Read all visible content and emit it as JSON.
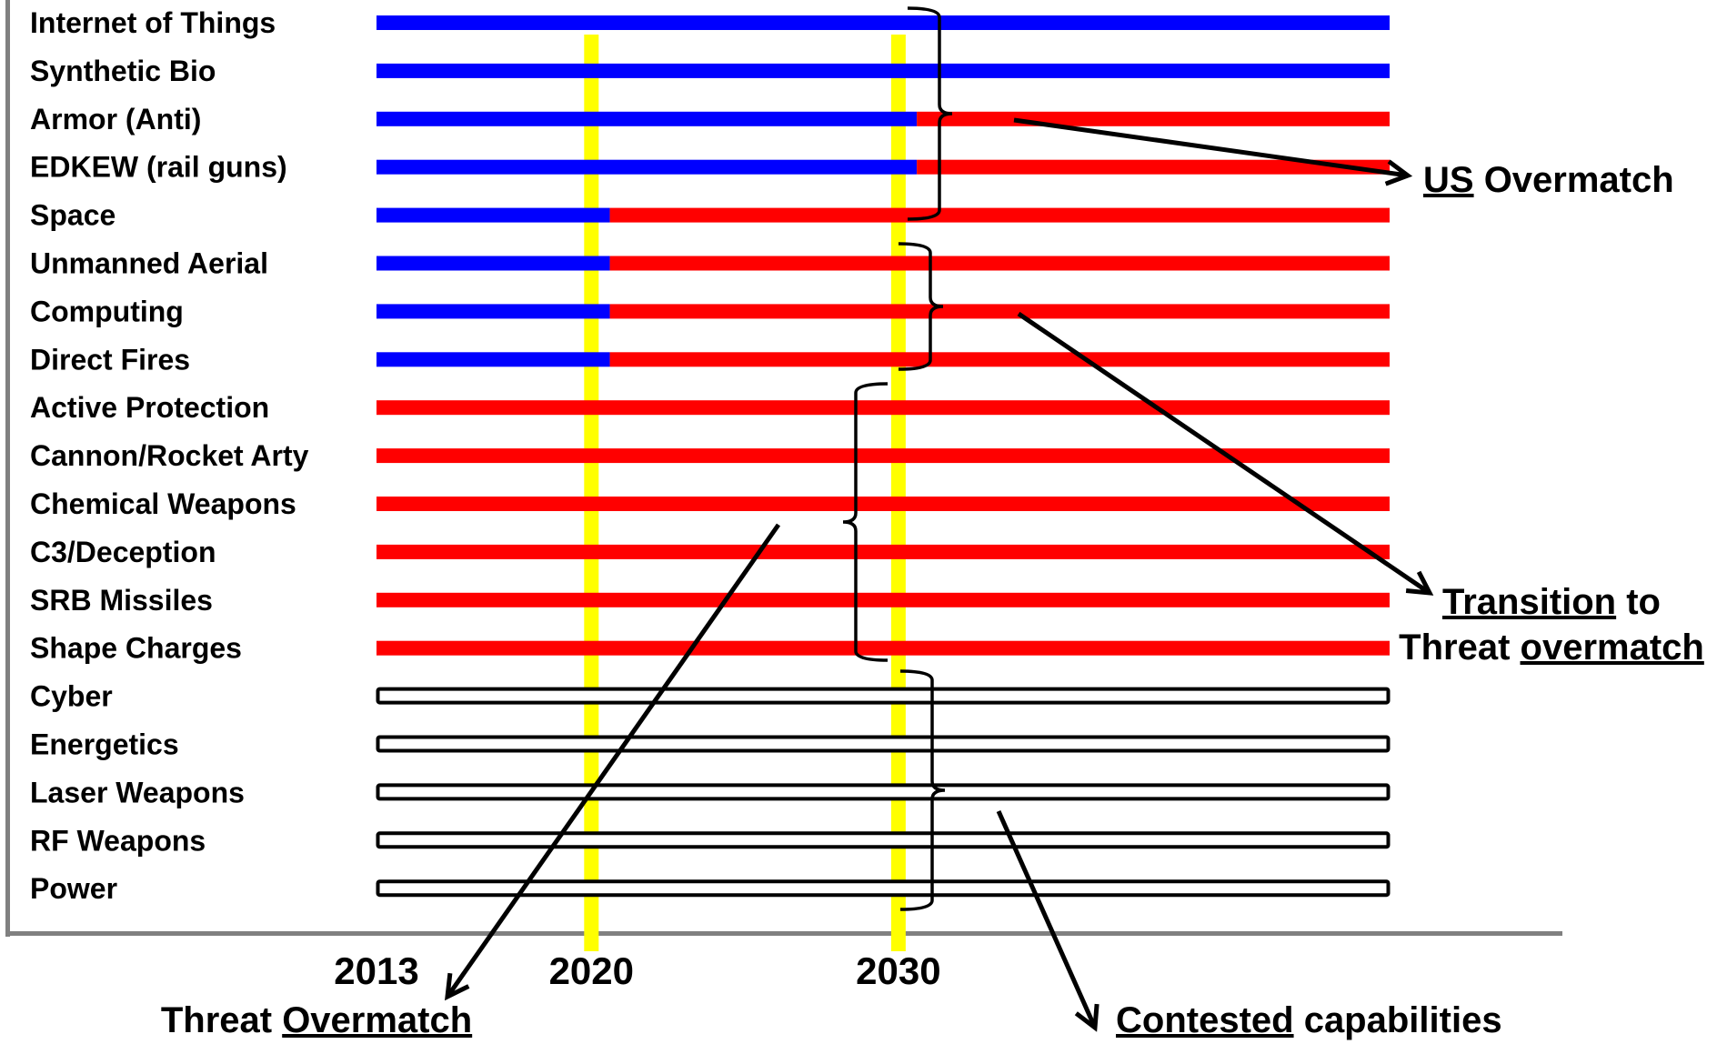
{
  "chart_data": {
    "type": "bar",
    "categories": [
      "Internet of Things",
      "Synthetic Bio",
      "Armor (Anti)",
      "EDKEW (rail guns)",
      "Space",
      "Unmanned Aerial",
      "Computing",
      "Direct Fires",
      "Active Protection",
      "Cannon/Rocket Arty",
      "Chemical Weapons",
      "C3/Deception",
      "SRB Missiles",
      "Shape Charges",
      "Cyber",
      "Energetics",
      "Laser Weapons",
      "RF Weapons",
      "Power"
    ],
    "xlim": [
      2013,
      2046
    ],
    "xticks": [
      "2013",
      "2020",
      "2030"
    ],
    "markers": [
      2020,
      2030
    ],
    "segments": [
      [
        {
          "start": 2013,
          "end": 2046,
          "status": "us"
        }
      ],
      [
        {
          "start": 2013,
          "end": 2046,
          "status": "us"
        }
      ],
      [
        {
          "start": 2013,
          "end": 2030.6,
          "status": "us"
        },
        {
          "start": 2030.6,
          "end": 2046,
          "status": "threat"
        }
      ],
      [
        {
          "start": 2013,
          "end": 2030.6,
          "status": "us"
        },
        {
          "start": 2030.6,
          "end": 2046,
          "status": "threat"
        }
      ],
      [
        {
          "start": 2013,
          "end": 2020.6,
          "status": "us"
        },
        {
          "start": 2020.6,
          "end": 2046,
          "status": "threat"
        }
      ],
      [
        {
          "start": 2013,
          "end": 2020.6,
          "status": "us"
        },
        {
          "start": 2020.6,
          "end": 2046,
          "status": "threat"
        }
      ],
      [
        {
          "start": 2013,
          "end": 2020.6,
          "status": "us"
        },
        {
          "start": 2020.6,
          "end": 2046,
          "status": "threat"
        }
      ],
      [
        {
          "start": 2013,
          "end": 2020.6,
          "status": "us"
        },
        {
          "start": 2020.6,
          "end": 2046,
          "status": "threat"
        }
      ],
      [
        {
          "start": 2013,
          "end": 2046,
          "status": "threat"
        }
      ],
      [
        {
          "start": 2013,
          "end": 2046,
          "status": "threat"
        }
      ],
      [
        {
          "start": 2013,
          "end": 2046,
          "status": "threat"
        }
      ],
      [
        {
          "start": 2013,
          "end": 2046,
          "status": "threat"
        }
      ],
      [
        {
          "start": 2013,
          "end": 2046,
          "status": "threat"
        }
      ],
      [
        {
          "start": 2013,
          "end": 2046,
          "status": "threat"
        }
      ],
      [
        {
          "start": 2013,
          "end": 2046,
          "status": "contested"
        }
      ],
      [
        {
          "start": 2013,
          "end": 2046,
          "status": "contested"
        }
      ],
      [
        {
          "start": 2013,
          "end": 2046,
          "status": "contested"
        }
      ],
      [
        {
          "start": 2013,
          "end": 2046,
          "status": "contested"
        }
      ],
      [
        {
          "start": 2013,
          "end": 2046,
          "status": "contested"
        }
      ]
    ],
    "colors": {
      "us": "#0000ff",
      "threat": "#ff0000",
      "contested": "#ffffff",
      "marker": "#ffff00",
      "frame": "#808080"
    },
    "annotations": {
      "us_overmatch": {
        "underlined": "US",
        "rest": " Overmatch"
      },
      "transition": {
        "line1_underlined": "Transition",
        "line1_rest": " to",
        "line2_plain": "Threat ",
        "line2_underlined": "overmatch"
      },
      "threat_overmatch": {
        "plain": "Threat ",
        "underlined": "Overmatch"
      },
      "contested": {
        "underlined": "Contested",
        "rest": " capabilities"
      }
    }
  }
}
